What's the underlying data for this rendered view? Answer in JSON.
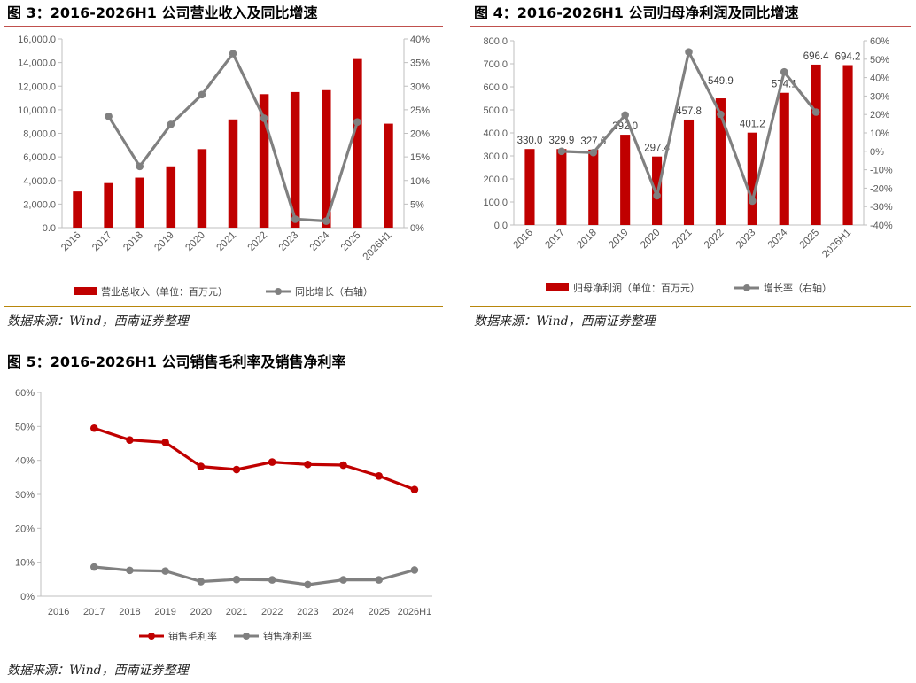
{
  "fig3": {
    "title": "图 3：2016-2026H1 公司营业收入及同比增速",
    "source": "数据来源：Wind，西南证券整理",
    "chart_data": {
      "type": "bar",
      "categories": [
        "2016",
        "2017",
        "2018",
        "2019",
        "2020",
        "2021",
        "2022",
        "2023",
        "2024",
        "2025",
        "2026H1"
      ],
      "series": [
        {
          "name": "营业总收入（单位：百万元）",
          "type": "bar",
          "axis": "left",
          "color": "#c00000",
          "values": [
            3070,
            3780,
            4240,
            5200,
            6660,
            9180,
            11320,
            11500,
            11660,
            14300,
            8820
          ]
        },
        {
          "name": "同比增长（右轴）",
          "type": "line",
          "axis": "right",
          "color": "#808080",
          "values": [
            null,
            23.6,
            13.0,
            21.9,
            28.2,
            36.9,
            23.2,
            1.8,
            1.4,
            22.4,
            null
          ]
        }
      ],
      "y_left": {
        "min": 0,
        "max": 16000,
        "ticks": [
          "0.0",
          "2,000.0",
          "4,000.0",
          "6,000.0",
          "8,000.0",
          "10,000.0",
          "12,000.0",
          "14,000.0",
          "16,000.0"
        ]
      },
      "y_right": {
        "min": 0,
        "max": 40,
        "ticks": [
          "0%",
          "5%",
          "10%",
          "15%",
          "20%",
          "25%",
          "30%",
          "35%",
          "40%"
        ]
      },
      "legend": "bottom",
      "grid": false
    }
  },
  "fig4": {
    "title": "图 4：2016-2026H1 公司归母净利润及同比增速",
    "source": "数据来源：Wind，西南证券整理",
    "chart_data": {
      "type": "bar",
      "categories": [
        "2016",
        "2017",
        "2018",
        "2019",
        "2020",
        "2021",
        "2022",
        "2023",
        "2024",
        "2025",
        "2026H1"
      ],
      "series": [
        {
          "name": "归母净利润（单位：百万元）",
          "type": "bar",
          "axis": "left",
          "color": "#c00000",
          "values": [
            330.0,
            329.9,
            327.6,
            392.0,
            297.4,
            457.8,
            549.9,
            401.2,
            574.1,
            696.4,
            694.2
          ],
          "labels": [
            "330.0",
            "329.9",
            "327.6",
            "392.0",
            "297.4",
            "457.8",
            "549.9",
            "401.2",
            "574.1",
            "696.4",
            "694.2"
          ]
        },
        {
          "name": "增长率（右轴）",
          "type": "line",
          "axis": "right",
          "color": "#808080",
          "values": [
            null,
            0.0,
            -0.7,
            19.7,
            -24.1,
            53.9,
            20.1,
            -27.0,
            43.1,
            21.3,
            null
          ]
        }
      ],
      "y_left": {
        "min": 0,
        "max": 800,
        "ticks": [
          "0.0",
          "100.0",
          "200.0",
          "300.0",
          "400.0",
          "500.0",
          "600.0",
          "700.0",
          "800.0"
        ]
      },
      "y_right": {
        "min": -40,
        "max": 60,
        "ticks": [
          "-40%",
          "-30%",
          "-20%",
          "-10%",
          "0%",
          "10%",
          "20%",
          "30%",
          "40%",
          "50%",
          "60%"
        ]
      },
      "legend": "bottom",
      "grid": false
    }
  },
  "fig5": {
    "title": "图 5：2016-2026H1 公司销售毛利率及销售净利率",
    "source": "数据来源：Wind，西南证券整理",
    "chart_data": {
      "type": "line",
      "categories": [
        "2016",
        "2017",
        "2018",
        "2019",
        "2020",
        "2021",
        "2022",
        "2023",
        "2024",
        "2025",
        "2026H1"
      ],
      "series": [
        {
          "name": "销售毛利率",
          "color": "#c00000",
          "values": [
            null,
            49.5,
            46.0,
            45.3,
            38.2,
            37.3,
            39.5,
            38.8,
            38.6,
            35.4,
            31.4
          ]
        },
        {
          "name": "销售净利率",
          "color": "#808080",
          "values": [
            null,
            8.6,
            7.6,
            7.4,
            4.3,
            4.9,
            4.8,
            3.4,
            4.8,
            4.8,
            7.7
          ]
        }
      ],
      "y": {
        "min": 0,
        "max": 60,
        "ticks": [
          "0%",
          "10%",
          "20%",
          "30%",
          "40%",
          "50%",
          "60%"
        ]
      },
      "legend": "bottom",
      "grid": false
    }
  }
}
